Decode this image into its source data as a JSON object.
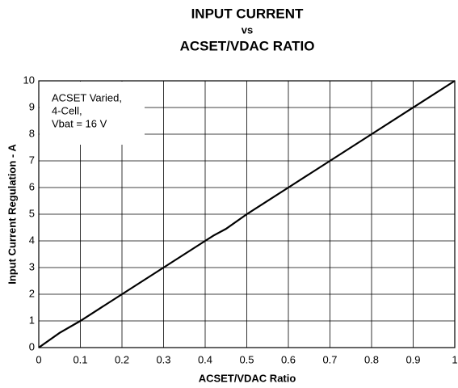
{
  "chart_data": {
    "type": "line",
    "title": [
      "INPUT CURRENT",
      "vs",
      "ACSET/VDAC RATIO"
    ],
    "x_label": "ACSET/VDAC Ratio",
    "y_label": "Input Current Regulation - A",
    "annotation": [
      "ACSET Varied,",
      "4-Cell,",
      "Vbat = 16 V"
    ],
    "x": [
      0,
      0.05,
      0.1,
      0.2,
      0.3,
      0.4,
      0.42,
      0.45,
      0.5,
      0.6,
      0.7,
      0.8,
      0.9,
      1
    ],
    "series": [
      {
        "color": "#000000",
        "values": [
          0,
          0.55,
          1,
          2,
          3,
          4,
          4.2,
          4.45,
          5,
          6,
          7,
          8,
          9,
          10
        ]
      }
    ],
    "xlim": [
      0,
      1
    ],
    "xticks": [
      0,
      0.1,
      0.2,
      0.3,
      0.4,
      0.5,
      0.6,
      0.7,
      0.8,
      0.9,
      1
    ],
    "ylim": [
      0,
      10
    ],
    "yticks": [
      0,
      1,
      2,
      3,
      4,
      5,
      6,
      7,
      8,
      9,
      10
    ],
    "grid": true
  }
}
